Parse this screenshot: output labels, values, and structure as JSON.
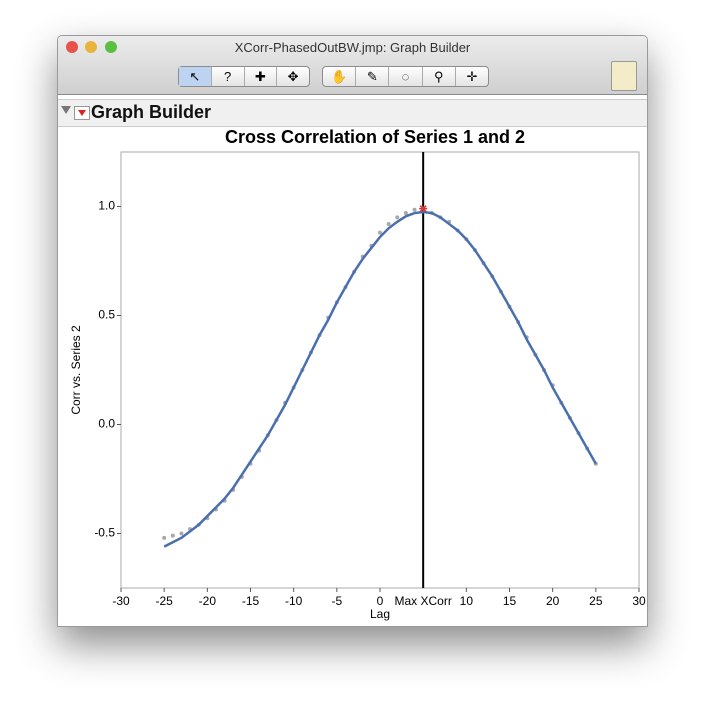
{
  "window": {
    "title": "XCorr-PhasedOutBW.jmp: Graph Builder",
    "toolbar_help": "?",
    "panel_title": "Graph Builder"
  },
  "chart_data": {
    "type": "line",
    "title": "Cross Correlation of Series 1 and 2",
    "x_label": "Lag",
    "y_label": "Corr vs. Series 2",
    "x": [
      -25,
      -24,
      -23,
      -22,
      -21,
      -20,
      -19,
      -18,
      -17,
      -16,
      -15,
      -14,
      -13,
      -12,
      -11,
      -10,
      -9,
      -8,
      -7,
      -6,
      -5,
      -4,
      -3,
      -2,
      -1,
      0,
      1,
      2,
      3,
      4,
      5,
      6,
      7,
      8,
      9,
      10,
      11,
      12,
      13,
      14,
      15,
      16,
      17,
      18,
      19,
      20,
      21,
      22,
      23,
      24,
      25
    ],
    "series": [
      {
        "color": "#a8a8a8",
        "mode": "markers",
        "values": [
          -0.52,
          -0.51,
          -0.5,
          -0.48,
          -0.46,
          -0.43,
          -0.39,
          -0.35,
          -0.3,
          -0.24,
          -0.18,
          -0.12,
          -0.05,
          0.02,
          0.1,
          0.17,
          0.25,
          0.33,
          0.41,
          0.49,
          0.56,
          0.63,
          0.7,
          0.77,
          0.82,
          0.88,
          0.92,
          0.95,
          0.97,
          0.985,
          0.99,
          0.97,
          0.95,
          0.93,
          0.89,
          0.85,
          0.8,
          0.74,
          0.68,
          0.61,
          0.54,
          0.47,
          0.4,
          0.32,
          0.25,
          0.18,
          0.1,
          0.03,
          -0.04,
          -0.11,
          -0.18
        ]
      },
      {
        "color": "#4a6fb0",
        "mode": "line",
        "values": [
          -0.56,
          -0.54,
          -0.52,
          -0.49,
          -0.46,
          -0.42,
          -0.38,
          -0.34,
          -0.29,
          -0.23,
          -0.17,
          -0.11,
          -0.05,
          0.02,
          0.09,
          0.17,
          0.25,
          0.33,
          0.41,
          0.48,
          0.56,
          0.63,
          0.7,
          0.76,
          0.81,
          0.86,
          0.9,
          0.93,
          0.955,
          0.97,
          0.975,
          0.97,
          0.95,
          0.92,
          0.89,
          0.85,
          0.8,
          0.74,
          0.68,
          0.61,
          0.54,
          0.47,
          0.39,
          0.32,
          0.25,
          0.17,
          0.1,
          0.03,
          -0.04,
          -0.11,
          -0.18
        ]
      }
    ],
    "max_marker": {
      "x": 5,
      "y": 0.99,
      "color": "#e03030"
    },
    "reference_line": {
      "value": 5,
      "label": "Max XCorr",
      "color": "#000000"
    },
    "xlim": [
      -30,
      30
    ],
    "xticks": [
      -30,
      -25,
      -20,
      -15,
      -10,
      -5,
      0,
      10,
      15,
      20,
      25,
      30
    ],
    "ylim": [
      -0.75,
      1.25
    ],
    "yticks": [
      -0.5,
      {
        "value": 0,
        "label": "0.0"
      },
      0.5,
      {
        "value": 1,
        "label": "1.0"
      }
    ]
  }
}
